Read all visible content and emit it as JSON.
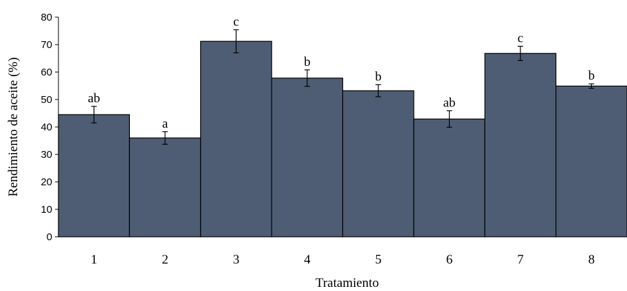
{
  "chart_data": {
    "type": "bar",
    "xlabel": "Tratamiento",
    "ylabel": "Rendimiento  de aceite (%)",
    "ylim": [
      0,
      80
    ],
    "yticks": [
      "0",
      "10",
      "20",
      "30",
      "40",
      "50",
      "60",
      "70",
      "80"
    ],
    "grid": false,
    "bar_color": "#4e5d74",
    "categories": [
      "1",
      "2",
      "3",
      "4",
      "5",
      "6",
      "7",
      "8"
    ],
    "values": [
      44.5,
      36,
      71.2,
      57.8,
      53.2,
      42.9,
      66.8,
      54.9
    ],
    "errors": [
      3,
      2.3,
      4.2,
      3,
      2.2,
      3,
      2.6,
      0.8
    ],
    "labels": [
      "ab",
      "a",
      "c",
      "b",
      "b",
      "ab",
      "c",
      "b"
    ]
  }
}
